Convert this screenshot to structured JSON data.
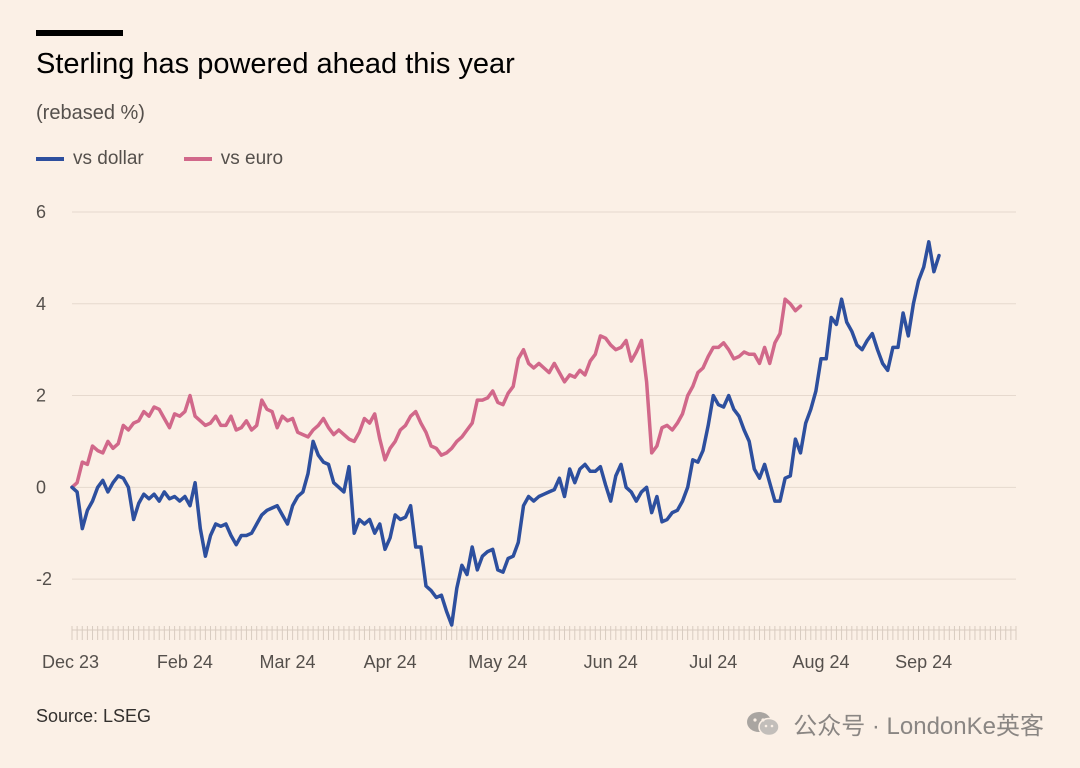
{
  "title": "Sterling has powered ahead this year",
  "subtitle": "(rebased %)",
  "source": "Source: LSEG",
  "watermark": "公众号 · LondonKe英客",
  "colors": {
    "dollar": "#2d4f9e",
    "euro": "#d1688a",
    "grid": "#e6d9ce",
    "background": "#fbf0e6"
  },
  "chart_data": {
    "type": "line",
    "title": "Sterling has powered ahead this year",
    "ylabel": "(rebased %)",
    "xlabel": "",
    "ylim": [
      -3,
      6
    ],
    "yticks": [
      -2,
      0,
      2,
      4,
      6
    ],
    "xlim": [
      0,
      184
    ],
    "xticks": [
      {
        "label": "Dec 23",
        "x": 0
      },
      {
        "label": "Feb 24",
        "x": 22
      },
      {
        "label": "Mar 24",
        "x": 42
      },
      {
        "label": "Apr 24",
        "x": 62
      },
      {
        "label": "May 24",
        "x": 83
      },
      {
        "label": "Jun 24",
        "x": 105
      },
      {
        "label": "Jul 24",
        "x": 125
      },
      {
        "label": "Aug 24",
        "x": 146
      },
      {
        "label": "Sep 24",
        "x": 166
      }
    ],
    "legend": "top-left",
    "series": [
      {
        "name": "vs dollar",
        "color": "#2d4f9e",
        "points": [
          [
            0,
            0
          ],
          [
            1,
            -0.1
          ],
          [
            2,
            -0.9
          ],
          [
            3,
            -0.5
          ],
          [
            4,
            -0.3
          ],
          [
            5,
            0
          ],
          [
            6,
            0.15
          ],
          [
            7,
            -0.1
          ],
          [
            8,
            0.1
          ],
          [
            9,
            0.25
          ],
          [
            10,
            0.2
          ],
          [
            11,
            0
          ],
          [
            12,
            -0.7
          ],
          [
            13,
            -0.35
          ],
          [
            14,
            -0.15
          ],
          [
            15,
            -0.25
          ],
          [
            16,
            -0.15
          ],
          [
            17,
            -0.3
          ],
          [
            18,
            -0.1
          ],
          [
            19,
            -0.25
          ],
          [
            20,
            -0.2
          ],
          [
            21,
            -0.3
          ],
          [
            22,
            -0.2
          ],
          [
            23,
            -0.4
          ],
          [
            24,
            0.1
          ],
          [
            25,
            -0.9
          ],
          [
            26,
            -1.5
          ],
          [
            27,
            -1.05
          ],
          [
            28,
            -0.8
          ],
          [
            29,
            -0.85
          ],
          [
            30,
            -0.8
          ],
          [
            31,
            -1.05
          ],
          [
            32,
            -1.25
          ],
          [
            33,
            -1.05
          ],
          [
            34,
            -1.05
          ],
          [
            35,
            -1.0
          ],
          [
            36,
            -0.8
          ],
          [
            37,
            -0.6
          ],
          [
            38,
            -0.5
          ],
          [
            39,
            -0.45
          ],
          [
            40,
            -0.4
          ],
          [
            41,
            -0.6
          ],
          [
            42,
            -0.8
          ],
          [
            43,
            -0.4
          ],
          [
            44,
            -0.2
          ],
          [
            45,
            -0.1
          ],
          [
            46,
            0.3
          ],
          [
            47,
            1.0
          ],
          [
            48,
            0.7
          ],
          [
            49,
            0.55
          ],
          [
            50,
            0.5
          ],
          [
            51,
            0.1
          ],
          [
            52,
            0
          ],
          [
            53,
            -0.1
          ],
          [
            54,
            0.45
          ],
          [
            55,
            -1.0
          ],
          [
            56,
            -0.7
          ],
          [
            57,
            -0.8
          ],
          [
            58,
            -0.7
          ],
          [
            59,
            -1.0
          ],
          [
            60,
            -0.8
          ],
          [
            61,
            -1.35
          ],
          [
            62,
            -1.1
          ],
          [
            63,
            -0.6
          ],
          [
            64,
            -0.7
          ],
          [
            65,
            -0.65
          ],
          [
            66,
            -0.4
          ],
          [
            67,
            -1.3
          ],
          [
            68,
            -1.3
          ],
          [
            69,
            -2.15
          ],
          [
            70,
            -2.25
          ],
          [
            71,
            -2.4
          ],
          [
            72,
            -2.35
          ],
          [
            73,
            -2.7
          ],
          [
            74,
            -3.0
          ],
          [
            75,
            -2.2
          ],
          [
            76,
            -1.7
          ],
          [
            77,
            -1.9
          ],
          [
            78,
            -1.3
          ],
          [
            79,
            -1.8
          ],
          [
            80,
            -1.5
          ],
          [
            81,
            -1.4
          ],
          [
            82,
            -1.35
          ],
          [
            83,
            -1.8
          ],
          [
            84,
            -1.85
          ],
          [
            85,
            -1.55
          ],
          [
            86,
            -1.5
          ],
          [
            87,
            -1.2
          ],
          [
            88,
            -0.4
          ],
          [
            89,
            -0.2
          ],
          [
            90,
            -0.3
          ],
          [
            91,
            -0.2
          ],
          [
            92,
            -0.15
          ],
          [
            93,
            -0.1
          ],
          [
            94,
            -0.05
          ],
          [
            95,
            0.2
          ],
          [
            96,
            -0.2
          ],
          [
            97,
            0.4
          ],
          [
            98,
            0.1
          ],
          [
            99,
            0.4
          ],
          [
            100,
            0.5
          ],
          [
            101,
            0.35
          ],
          [
            102,
            0.35
          ],
          [
            103,
            0.45
          ],
          [
            104,
            0.05
          ],
          [
            105,
            -0.3
          ],
          [
            106,
            0.25
          ],
          [
            107,
            0.5
          ],
          [
            108,
            0
          ],
          [
            109,
            -0.1
          ],
          [
            110,
            -0.3
          ],
          [
            111,
            -0.1
          ],
          [
            112,
            0
          ],
          [
            113,
            -0.55
          ],
          [
            114,
            -0.2
          ],
          [
            115,
            -0.75
          ],
          [
            116,
            -0.7
          ],
          [
            117,
            -0.55
          ],
          [
            118,
            -0.5
          ],
          [
            119,
            -0.3
          ],
          [
            120,
            0
          ],
          [
            121,
            0.6
          ],
          [
            122,
            0.55
          ],
          [
            123,
            0.8
          ],
          [
            124,
            1.35
          ],
          [
            125,
            2.0
          ],
          [
            126,
            1.8
          ],
          [
            127,
            1.75
          ],
          [
            128,
            2.0
          ],
          [
            129,
            1.7
          ],
          [
            130,
            1.55
          ],
          [
            131,
            1.25
          ],
          [
            132,
            1.0
          ],
          [
            133,
            0.4
          ],
          [
            134,
            0.2
          ],
          [
            135,
            0.5
          ],
          [
            136,
            0.1
          ],
          [
            137,
            -0.3
          ],
          [
            138,
            -0.3
          ],
          [
            139,
            0.2
          ],
          [
            140,
            0.25
          ],
          [
            141,
            1.05
          ],
          [
            142,
            0.75
          ],
          [
            143,
            1.4
          ],
          [
            144,
            1.7
          ],
          [
            145,
            2.1
          ],
          [
            146,
            2.8
          ],
          [
            147,
            2.8
          ],
          [
            148,
            3.7
          ],
          [
            149,
            3.55
          ],
          [
            150,
            4.1
          ],
          [
            151,
            3.6
          ],
          [
            152,
            3.4
          ],
          [
            153,
            3.1
          ],
          [
            154,
            3.0
          ],
          [
            155,
            3.2
          ],
          [
            156,
            3.35
          ],
          [
            157,
            3.0
          ],
          [
            158,
            2.7
          ],
          [
            159,
            2.55
          ],
          [
            160,
            3.05
          ],
          [
            161,
            3.05
          ],
          [
            162,
            3.8
          ],
          [
            163,
            3.3
          ],
          [
            164,
            4.0
          ],
          [
            165,
            4.5
          ],
          [
            166,
            4.8
          ],
          [
            167,
            5.35
          ],
          [
            168,
            4.7
          ],
          [
            169,
            5.05
          ]
        ]
      },
      {
        "name": "vs euro",
        "color": "#d1688a",
        "points": [
          [
            0,
            0
          ],
          [
            1,
            0.1
          ],
          [
            2,
            0.55
          ],
          [
            3,
            0.5
          ],
          [
            4,
            0.9
          ],
          [
            5,
            0.8
          ],
          [
            6,
            0.75
          ],
          [
            7,
            1.0
          ],
          [
            8,
            0.85
          ],
          [
            9,
            0.95
          ],
          [
            10,
            1.35
          ],
          [
            11,
            1.25
          ],
          [
            12,
            1.4
          ],
          [
            13,
            1.45
          ],
          [
            14,
            1.65
          ],
          [
            15,
            1.55
          ],
          [
            16,
            1.75
          ],
          [
            17,
            1.7
          ],
          [
            18,
            1.5
          ],
          [
            19,
            1.3
          ],
          [
            20,
            1.6
          ],
          [
            21,
            1.55
          ],
          [
            22,
            1.65
          ],
          [
            23,
            2.0
          ],
          [
            24,
            1.55
          ],
          [
            25,
            1.45
          ],
          [
            26,
            1.35
          ],
          [
            27,
            1.4
          ],
          [
            28,
            1.55
          ],
          [
            29,
            1.35
          ],
          [
            30,
            1.35
          ],
          [
            31,
            1.55
          ],
          [
            32,
            1.25
          ],
          [
            33,
            1.3
          ],
          [
            34,
            1.45
          ],
          [
            35,
            1.25
          ],
          [
            36,
            1.35
          ],
          [
            37,
            1.9
          ],
          [
            38,
            1.7
          ],
          [
            39,
            1.65
          ],
          [
            40,
            1.3
          ],
          [
            41,
            1.55
          ],
          [
            42,
            1.45
          ],
          [
            43,
            1.5
          ],
          [
            44,
            1.2
          ],
          [
            45,
            1.15
          ],
          [
            46,
            1.1
          ],
          [
            47,
            1.25
          ],
          [
            48,
            1.35
          ],
          [
            49,
            1.5
          ],
          [
            50,
            1.3
          ],
          [
            51,
            1.15
          ],
          [
            52,
            1.25
          ],
          [
            53,
            1.15
          ],
          [
            54,
            1.05
          ],
          [
            55,
            1.0
          ],
          [
            56,
            1.2
          ],
          [
            57,
            1.5
          ],
          [
            58,
            1.4
          ],
          [
            59,
            1.6
          ],
          [
            60,
            1.05
          ],
          [
            61,
            0.6
          ],
          [
            62,
            0.85
          ],
          [
            63,
            1.0
          ],
          [
            64,
            1.25
          ],
          [
            65,
            1.35
          ],
          [
            66,
            1.55
          ],
          [
            67,
            1.65
          ],
          [
            68,
            1.4
          ],
          [
            69,
            1.2
          ],
          [
            70,
            0.9
          ],
          [
            71,
            0.85
          ],
          [
            72,
            0.7
          ],
          [
            73,
            0.75
          ],
          [
            74,
            0.85
          ],
          [
            75,
            1.0
          ],
          [
            76,
            1.1
          ],
          [
            77,
            1.25
          ],
          [
            78,
            1.4
          ],
          [
            79,
            1.9
          ],
          [
            80,
            1.9
          ],
          [
            81,
            1.95
          ],
          [
            82,
            2.1
          ],
          [
            83,
            1.85
          ],
          [
            84,
            1.8
          ],
          [
            85,
            2.05
          ],
          [
            86,
            2.2
          ],
          [
            87,
            2.8
          ],
          [
            88,
            3.0
          ],
          [
            89,
            2.7
          ],
          [
            90,
            2.6
          ],
          [
            91,
            2.7
          ],
          [
            92,
            2.6
          ],
          [
            93,
            2.5
          ],
          [
            94,
            2.7
          ],
          [
            95,
            2.5
          ],
          [
            96,
            2.3
          ],
          [
            97,
            2.45
          ],
          [
            98,
            2.4
          ],
          [
            99,
            2.55
          ],
          [
            100,
            2.45
          ],
          [
            101,
            2.75
          ],
          [
            102,
            2.9
          ],
          [
            103,
            3.3
          ],
          [
            104,
            3.25
          ],
          [
            105,
            3.1
          ],
          [
            106,
            3.0
          ],
          [
            107,
            3.05
          ],
          [
            108,
            3.2
          ],
          [
            109,
            2.75
          ],
          [
            110,
            2.95
          ],
          [
            111,
            3.2
          ],
          [
            112,
            2.3
          ],
          [
            113,
            0.75
          ],
          [
            114,
            0.9
          ],
          [
            115,
            1.3
          ],
          [
            116,
            1.35
          ],
          [
            117,
            1.25
          ],
          [
            118,
            1.4
          ],
          [
            119,
            1.6
          ],
          [
            120,
            2.0
          ],
          [
            121,
            2.2
          ],
          [
            122,
            2.5
          ],
          [
            123,
            2.6
          ],
          [
            124,
            2.85
          ],
          [
            125,
            3.05
          ],
          [
            126,
            3.05
          ],
          [
            127,
            3.15
          ],
          [
            128,
            3.0
          ],
          [
            129,
            2.8
          ],
          [
            130,
            2.85
          ],
          [
            131,
            2.95
          ],
          [
            132,
            2.9
          ],
          [
            133,
            2.9
          ],
          [
            134,
            2.7
          ],
          [
            135,
            3.05
          ],
          [
            136,
            2.7
          ],
          [
            137,
            3.15
          ],
          [
            138,
            3.35
          ],
          [
            139,
            4.1
          ],
          [
            140,
            4.0
          ],
          [
            141,
            3.85
          ],
          [
            142,
            3.95
          ]
        ]
      }
    ]
  }
}
